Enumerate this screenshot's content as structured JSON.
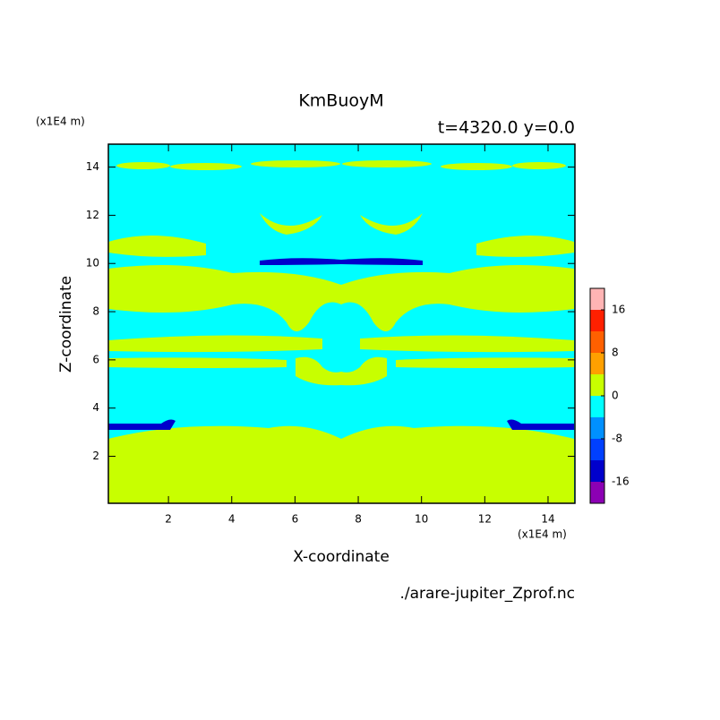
{
  "chart_data": {
    "type": "contour",
    "title": "KmBuoyM",
    "subtitle": "t=4320.0 y=0.0",
    "x_label": "X-coordinate",
    "y_label": "Z-coordinate",
    "x_unit": "(x1E4 m)",
    "y_unit": "(x1E4 m)",
    "source": "./arare-jupiter_Zprof.nc",
    "xlim": [
      0.1,
      14.85
    ],
    "ylim": [
      0.05,
      14.95
    ],
    "xticks": [
      2,
      4,
      6,
      8,
      10,
      12,
      14
    ],
    "yticks": [
      2,
      4,
      6,
      8,
      10,
      12,
      14
    ],
    "levels": [
      -20,
      -16,
      -12,
      -8,
      -4,
      0,
      4,
      8,
      12,
      16,
      20
    ],
    "colors": [
      "#8c00b4",
      "#0000cc",
      "#0040ff",
      "#0090ff",
      "#00ffff",
      "#c8ff00",
      "#ffa000",
      "#ff6000",
      "#ff2000",
      "#ffb4b4"
    ],
    "colorbar_ticks": [
      -16,
      -8,
      0,
      8,
      16
    ]
  }
}
